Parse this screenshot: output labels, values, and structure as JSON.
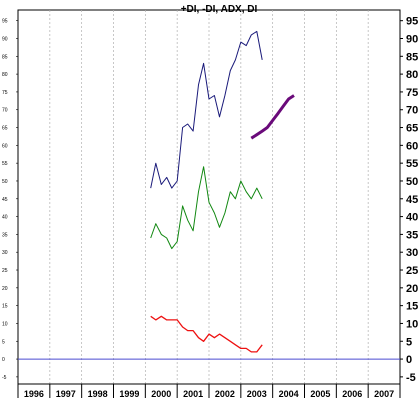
{
  "chart_data": {
    "type": "line",
    "title": "+DI, -DI, ADX, DI",
    "x_labels": [
      "1996",
      "1997",
      "1998",
      "1999",
      "2000",
      "2001",
      "2002",
      "2003",
      "2004",
      "2005",
      "2006",
      "2007"
    ],
    "y_ticks": [
      -5,
      0,
      5,
      10,
      15,
      20,
      25,
      30,
      35,
      40,
      45,
      50,
      55,
      60,
      65,
      70,
      75,
      80,
      85,
      90,
      95
    ],
    "ylim": [
      -7,
      98
    ],
    "grid": true,
    "baseline": 0,
    "series": [
      {
        "color": "#1a1a7a",
        "width": 1,
        "x": [
          1999.67,
          1999.83,
          2000.0,
          2000.17,
          2000.33,
          2000.5,
          2000.67,
          2000.83,
          2001.0,
          2001.17,
          2001.33,
          2001.5,
          2001.67,
          2001.83,
          2002.0,
          2002.17,
          2002.33,
          2002.5,
          2002.67,
          2002.83,
          2003.0,
          2003.17,
          2003.33,
          2003.5,
          2003.67,
          2003.83,
          2004.0,
          2004.17,
          2004.33,
          2004.5,
          2004.67,
          2004.83
        ],
        "y": [
          48,
          55,
          49,
          51,
          48,
          50,
          65,
          66,
          64,
          77,
          83,
          73,
          74,
          68,
          74,
          81,
          84,
          89,
          88,
          91,
          92,
          84,
          null,
          null,
          null,
          null,
          null,
          null,
          null,
          null,
          null,
          null
        ]
      },
      {
        "color": "#118811",
        "width": 1,
        "x": [
          1999.67,
          1999.83,
          2000.0,
          2000.17,
          2000.33,
          2000.5,
          2000.67,
          2000.83,
          2001.0,
          2001.17,
          2001.33,
          2001.5,
          2001.67,
          2001.83,
          2002.0,
          2002.17,
          2002.33,
          2002.5,
          2002.67,
          2002.83,
          2003.0,
          2003.17
        ],
        "y": [
          34,
          38,
          35,
          34,
          31,
          33,
          43,
          39,
          36,
          47,
          54,
          44,
          41,
          37,
          41,
          47,
          45,
          50,
          47,
          45,
          48,
          45
        ]
      },
      {
        "color": "#ee1111",
        "width": 1.3,
        "x": [
          1999.67,
          1999.83,
          2000.0,
          2000.17,
          2000.33,
          2000.5,
          2000.67,
          2000.83,
          2001.0,
          2001.17,
          2001.33,
          2001.5,
          2001.67,
          2001.83,
          2002.0,
          2002.17,
          2002.33,
          2002.5,
          2002.67,
          2002.83,
          2003.0,
          2003.17
        ],
        "y": [
          12,
          11,
          12,
          11,
          11,
          11,
          9,
          8,
          8,
          6,
          5,
          7,
          6,
          7,
          6,
          5,
          4,
          3,
          3,
          2,
          2,
          4
        ]
      },
      {
        "color": "#6a0a7a",
        "width": 3,
        "x": [
          2002.83,
          2003.0,
          2003.17,
          2003.33,
          2003.5,
          2003.67,
          2003.83,
          2004.0,
          2004.17,
          2004.33,
          2004.5,
          2004.67,
          2004.83
        ],
        "y": [
          62,
          63,
          64,
          65,
          67,
          69,
          71,
          73,
          74,
          null,
          null,
          null,
          null
        ]
      }
    ]
  }
}
